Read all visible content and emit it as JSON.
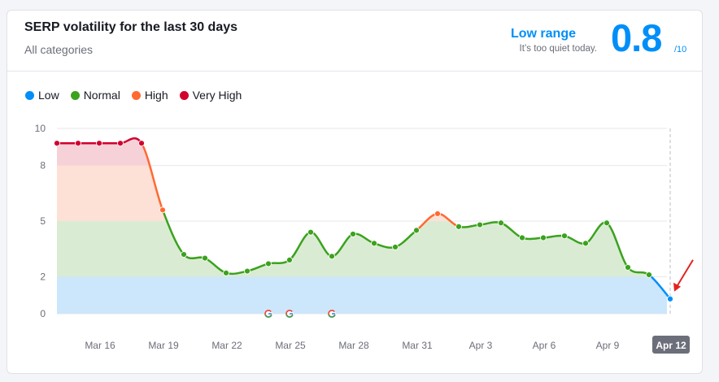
{
  "header": {
    "title": "SERP volatility for the last 30 days",
    "subtitle": "All categories",
    "range_label": "Low range",
    "range_desc": "It’s too quiet today.",
    "score": "0.8",
    "score_max": "/10"
  },
  "legend": [
    {
      "label": "Low",
      "color": "#008ff8"
    },
    {
      "label": "Normal",
      "color": "#3ba21e"
    },
    {
      "label": "High",
      "color": "#ff6a30"
    },
    {
      "label": "Very High",
      "color": "#d1002f"
    }
  ],
  "chart_data": {
    "type": "line",
    "title": "SERP volatility for the last 30 days",
    "ylim": [
      0,
      10
    ],
    "yticks": [
      0,
      2,
      5,
      8,
      10
    ],
    "x_labels": [
      "Mar 16",
      "Mar 19",
      "Mar 22",
      "Mar 25",
      "Mar 28",
      "Mar 31",
      "Apr 3",
      "Apr 6",
      "Apr 9",
      "Apr 12"
    ],
    "highlight_label": "Apr 12",
    "bands": [
      {
        "level": "Low",
        "from": 0,
        "to": 2,
        "color": "#cce6fb"
      },
      {
        "level": "Normal",
        "from": 2,
        "to": 5,
        "color": "#d9ecd3"
      },
      {
        "level": "High",
        "from": 5,
        "to": 8,
        "color": "#fde0d6"
      },
      {
        "level": "Very High",
        "from": 8,
        "to": 10,
        "color": "#f6d1d8"
      }
    ],
    "series": [
      {
        "name": "Volatility",
        "x": [
          "Mar 14",
          "Mar 15",
          "Mar 16",
          "Mar 17",
          "Mar 18",
          "Mar 19",
          "Mar 20",
          "Mar 21",
          "Mar 22",
          "Mar 23",
          "Mar 24",
          "Mar 25",
          "Mar 26",
          "Mar 27",
          "Mar 28",
          "Mar 29",
          "Mar 30",
          "Mar 31",
          "Apr 1",
          "Apr 2",
          "Apr 3",
          "Apr 4",
          "Apr 5",
          "Apr 6",
          "Apr 7",
          "Apr 8",
          "Apr 9",
          "Apr 10",
          "Apr 11",
          "Apr 12"
        ],
        "values": [
          9.2,
          9.2,
          9.2,
          9.2,
          9.2,
          5.6,
          3.2,
          3.0,
          2.2,
          2.3,
          2.7,
          2.9,
          4.4,
          3.1,
          4.3,
          3.8,
          3.6,
          4.5,
          5.4,
          4.7,
          4.8,
          4.9,
          4.1,
          4.1,
          4.2,
          3.8,
          4.9,
          2.5,
          2.1,
          0.8
        ]
      }
    ],
    "google_update_markers": [
      "Mar 24",
      "Mar 25",
      "Mar 27"
    ]
  }
}
